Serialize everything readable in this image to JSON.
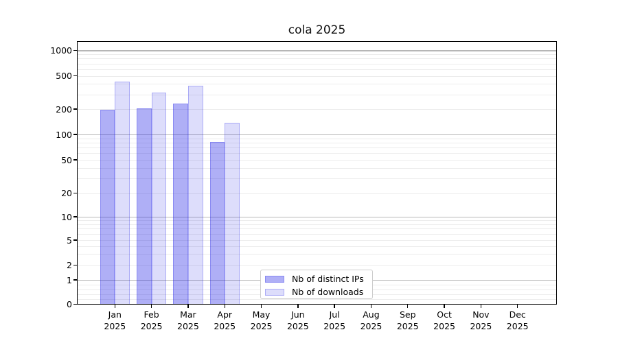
{
  "figure": {
    "title": "cola 2025",
    "background": "#ffffff"
  },
  "legend": {
    "items": [
      {
        "label": "Nb of distinct IPs",
        "color": "rgba(25,25,230,0.35)"
      },
      {
        "label": "Nb of downloads",
        "color": "rgba(25,25,230,0.15)"
      }
    ]
  },
  "chart_data": {
    "type": "bar",
    "title": "cola 2025",
    "categories": [
      "Jan 2025",
      "Feb 2025",
      "Mar 2025",
      "Apr 2025",
      "May 2025",
      "Jun 2025",
      "Jul 2025",
      "Aug 2025",
      "Sep 2025",
      "Oct 2025",
      "Nov 2025",
      "Dec 2025"
    ],
    "series": [
      {
        "name": "Nb of distinct IPs",
        "color": "rgba(25,25,230,0.35)",
        "values": [
          197,
          202,
          231,
          82,
          null,
          null,
          null,
          null,
          null,
          null,
          null,
          null
        ]
      },
      {
        "name": "Nb of downloads",
        "color": "rgba(25,25,230,0.15)",
        "values": [
          430,
          314,
          379,
          137,
          null,
          null,
          null,
          null,
          null,
          null,
          null,
          null
        ]
      }
    ],
    "xlabel": "",
    "ylabel": "",
    "yscale": "symlog",
    "y_ticks": [
      0,
      1,
      2,
      5,
      10,
      20,
      50,
      100,
      200,
      500,
      1000
    ],
    "ylim": [
      0,
      1300
    ],
    "grid": "horizontal",
    "legend_position": "lower center",
    "colors": {
      "bar_dark": "rgba(25,25,230,0.35)",
      "bar_light": "rgba(25,25,230,0.15)",
      "bar_edge": "rgba(25,25,230,0.25)",
      "grid_major": "#b6b6b6",
      "grid_minor": "#ececec",
      "axis": "#000000"
    }
  }
}
